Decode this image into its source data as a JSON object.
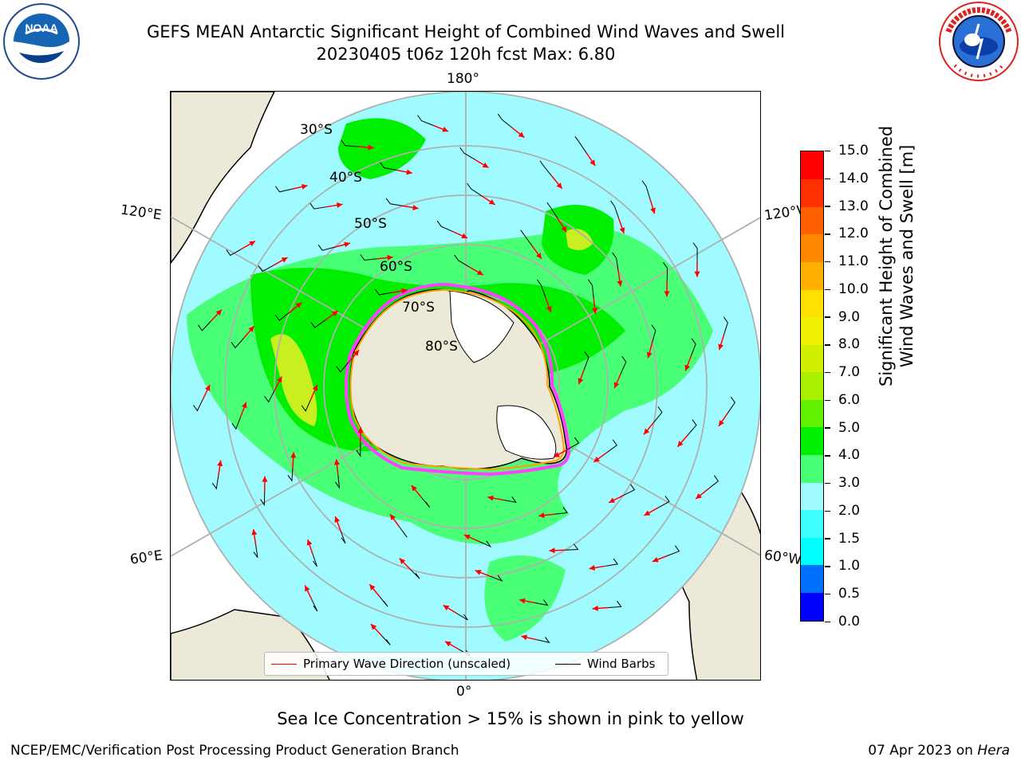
{
  "title": {
    "line1": "GEFS MEAN Antarctic Significant Height of Combined Wind Waves and Swell",
    "line2": "20230405 t06z 120h fcst   Max: 6.80"
  },
  "logos": {
    "left": "NOAA",
    "right": "NATIONAL WEATHER SERVICE"
  },
  "map": {
    "projection": "south polar stereographic",
    "lon_labels": {
      "top": "180°",
      "bottom": "0°",
      "left_upper": "120°E",
      "left_lower": "60°E",
      "right_upper": "120°W",
      "right_lower": "60°W"
    },
    "lat_labels": [
      "30°S",
      "40°S",
      "50°S",
      "60°S",
      "70°S",
      "80°S"
    ],
    "colors": {
      "land": "#ede9d8",
      "ice": "#ffffff",
      "ocean_low": "#9ffbff",
      "ocean_mid": "#48ff75",
      "ocean_high": "#00ee00",
      "peak": "#c8f020",
      "sea_ice_edge": "#ff40ff",
      "sea_ice_inner": "#ffa000"
    }
  },
  "legend": {
    "items": [
      {
        "label": "Primary Wave Direction (unscaled)",
        "color": "#ff0000"
      },
      {
        "label": "Wind Barbs",
        "color": "#000000"
      }
    ]
  },
  "colorbar": {
    "label_line1": "Significant Height of Combined",
    "label_line2": "Wind Waves and Swell [m]",
    "ticks": [
      "15.0",
      "14.0",
      "13.0",
      "12.0",
      "11.0",
      "10.0",
      "9.0",
      "8.0",
      "7.0",
      "6.0",
      "5.0",
      "4.0",
      "3.0",
      "2.0",
      "1.5",
      "1.0",
      "0.5",
      "0.0"
    ],
    "colors": [
      "#0000ff",
      "#0070ff",
      "#00ffff",
      "#40ffff",
      "#9ffbff",
      "#48ff75",
      "#00ee00",
      "#60f000",
      "#a8f000",
      "#d0f000",
      "#f0f000",
      "#ffe000",
      "#ffb000",
      "#ff8800",
      "#ff6000",
      "#ff3000",
      "#ff0000"
    ]
  },
  "notes": {
    "sea_ice": "Sea Ice Concentration > 15% is shown in pink to yellow",
    "credit": "NCEP/EMC/Verification Post Processing Product Generation Branch",
    "date": "07 Apr 2023 on ",
    "host": "Hera"
  }
}
